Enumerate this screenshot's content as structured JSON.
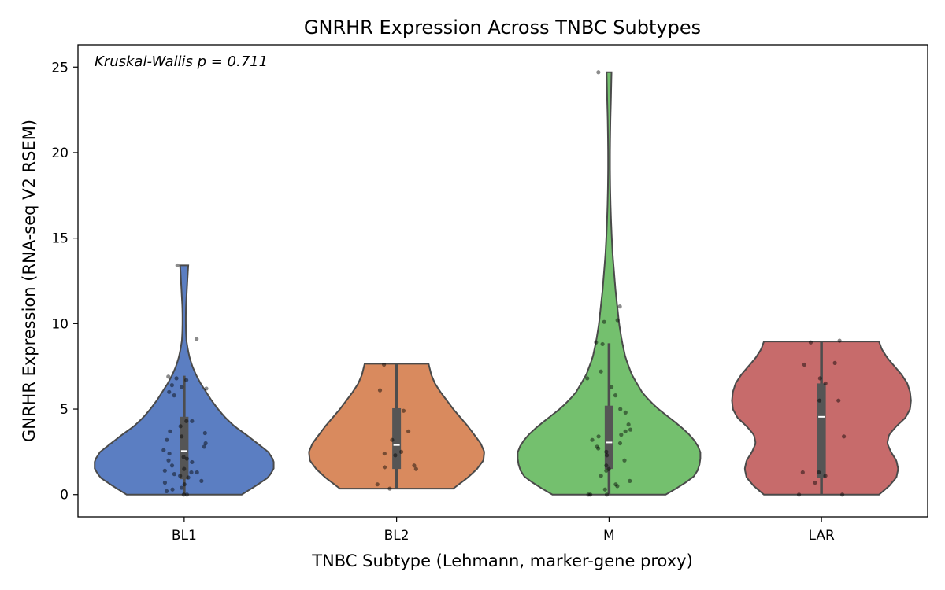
{
  "chart_data": {
    "type": "violin",
    "title": "GNRHR Expression Across TNBC Subtypes",
    "xlabel": "TNBC Subtype (Lehmann, marker-gene proxy)",
    "ylabel": "GNRHR Expression (RNA-seq V2 RSEM)",
    "annotation": "Kruskal-Wallis p = 0.711",
    "ylim": [
      -1.3,
      26.3
    ],
    "yticks": [
      "0",
      "5",
      "10",
      "15",
      "20",
      "25"
    ],
    "categories": [
      "BL1",
      "BL2",
      "M",
      "LAR"
    ],
    "grid": false,
    "legend": "none",
    "series": [
      {
        "category": "BL1",
        "color": "#5b7ec2",
        "violin_min": 0,
        "violin_max": 13.4,
        "density": [
          [
            0,
            0.63
          ],
          [
            0.5,
            0.78
          ],
          [
            1.0,
            0.92
          ],
          [
            1.5,
            0.98
          ],
          [
            2.0,
            0.98
          ],
          [
            2.5,
            0.92
          ],
          [
            3.0,
            0.8
          ],
          [
            3.5,
            0.68
          ],
          [
            4.0,
            0.55
          ],
          [
            4.5,
            0.45
          ],
          [
            5.0,
            0.37
          ],
          [
            5.5,
            0.3
          ],
          [
            6.0,
            0.24
          ],
          [
            6.5,
            0.18
          ],
          [
            7.0,
            0.13
          ],
          [
            7.5,
            0.09
          ],
          [
            8.0,
            0.06
          ],
          [
            8.5,
            0.04
          ],
          [
            9.0,
            0.025
          ],
          [
            9.5,
            0.02
          ],
          [
            10.0,
            0.018
          ],
          [
            10.5,
            0.018
          ],
          [
            11.0,
            0.02
          ],
          [
            11.5,
            0.025
          ],
          [
            12.0,
            0.03
          ],
          [
            12.5,
            0.035
          ],
          [
            13.0,
            0.04
          ],
          [
            13.4,
            0.045
          ]
        ],
        "box": {
          "q1": 0.9,
          "median": 2.55,
          "q3": 4.55,
          "whisker_low": 0,
          "whisker_high": 6.95
        },
        "points": [
          0.0,
          0.0,
          0.2,
          0.3,
          0.4,
          0.6,
          0.7,
          0.8,
          1.0,
          1.1,
          1.2,
          1.3,
          1.3,
          1.4,
          1.5,
          1.7,
          1.9,
          2.0,
          2.1,
          2.2,
          2.4,
          2.6,
          2.8,
          3.0,
          3.2,
          3.4,
          3.6,
          3.7,
          4.0,
          4.3,
          4.3,
          5.8,
          6.0,
          6.2,
          6.3,
          6.4,
          6.7,
          6.8,
          6.9,
          9.1,
          13.4
        ]
      },
      {
        "category": "BL2",
        "color": "#d98a5e",
        "violin_min": 0.35,
        "violin_max": 7.65,
        "density": [
          [
            0.35,
            0.62
          ],
          [
            1.0,
            0.78
          ],
          [
            1.5,
            0.88
          ],
          [
            2.0,
            0.95
          ],
          [
            2.5,
            0.96
          ],
          [
            3.0,
            0.92
          ],
          [
            3.5,
            0.85
          ],
          [
            4.0,
            0.78
          ],
          [
            4.5,
            0.7
          ],
          [
            5.0,
            0.62
          ],
          [
            5.5,
            0.55
          ],
          [
            6.0,
            0.48
          ],
          [
            6.5,
            0.42
          ],
          [
            7.0,
            0.38
          ],
          [
            7.65,
            0.35
          ]
        ],
        "box": {
          "q1": 1.5,
          "median": 2.9,
          "q3": 5.05,
          "whisker_low": 0.35,
          "whisker_high": 7.65
        },
        "points": [
          0.35,
          0.6,
          1.5,
          1.6,
          1.7,
          2.3,
          2.4,
          2.5,
          3.2,
          3.7,
          4.9,
          6.1,
          7.6
        ]
      },
      {
        "category": "M",
        "color": "#74c06e",
        "violin_min": 0,
        "violin_max": 24.7,
        "density": [
          [
            0,
            0.62
          ],
          [
            0.5,
            0.78
          ],
          [
            1.0,
            0.92
          ],
          [
            1.5,
            0.98
          ],
          [
            2.0,
            1.0
          ],
          [
            2.5,
            1.0
          ],
          [
            3.0,
            0.96
          ],
          [
            3.5,
            0.88
          ],
          [
            4.0,
            0.78
          ],
          [
            4.5,
            0.66
          ],
          [
            5.0,
            0.54
          ],
          [
            5.5,
            0.44
          ],
          [
            6.0,
            0.36
          ],
          [
            7.0,
            0.25
          ],
          [
            8.0,
            0.18
          ],
          [
            9.0,
            0.14
          ],
          [
            10.0,
            0.11
          ],
          [
            11.0,
            0.09
          ],
          [
            12.0,
            0.07
          ],
          [
            13.0,
            0.055
          ],
          [
            14.0,
            0.04
          ],
          [
            15.0,
            0.03
          ],
          [
            16.0,
            0.022
          ],
          [
            17.0,
            0.016
          ],
          [
            18.0,
            0.012
          ],
          [
            19.0,
            0.01
          ],
          [
            20.0,
            0.01
          ],
          [
            21.0,
            0.012
          ],
          [
            22.0,
            0.015
          ],
          [
            23.0,
            0.02
          ],
          [
            24.0,
            0.024
          ],
          [
            24.7,
            0.027
          ]
        ],
        "box": {
          "q1": 1.5,
          "median": 3.05,
          "q3": 5.2,
          "whisker_low": 0,
          "whisker_high": 8.85
        },
        "points": [
          0.0,
          0.0,
          0.0,
          0.3,
          0.5,
          0.6,
          0.8,
          1.1,
          1.4,
          1.5,
          1.7,
          2.0,
          2.3,
          2.5,
          2.7,
          2.8,
          3.0,
          3.2,
          3.4,
          3.5,
          3.7,
          3.8,
          4.1,
          4.8,
          5.0,
          5.8,
          6.3,
          6.8,
          7.2,
          8.8,
          8.9,
          10.1,
          10.2,
          11.0,
          24.7
        ]
      },
      {
        "category": "LAR",
        "color": "#c76b6b",
        "violin_min": 0,
        "violin_max": 8.95,
        "density": [
          [
            0,
            0.63
          ],
          [
            0.5,
            0.74
          ],
          [
            1.0,
            0.82
          ],
          [
            1.5,
            0.84
          ],
          [
            2.0,
            0.82
          ],
          [
            2.5,
            0.76
          ],
          [
            3.0,
            0.72
          ],
          [
            3.5,
            0.74
          ],
          [
            4.0,
            0.82
          ],
          [
            4.5,
            0.92
          ],
          [
            5.0,
            0.97
          ],
          [
            5.5,
            0.98
          ],
          [
            6.0,
            0.97
          ],
          [
            6.5,
            0.94
          ],
          [
            7.0,
            0.88
          ],
          [
            7.5,
            0.8
          ],
          [
            8.0,
            0.72
          ],
          [
            8.5,
            0.66
          ],
          [
            8.95,
            0.63
          ]
        ],
        "box": {
          "q1": 1.0,
          "median": 4.55,
          "q3": 6.5,
          "whisker_low": 0,
          "whisker_high": 8.95
        },
        "points": [
          0.0,
          0.0,
          0.7,
          1.1,
          1.3,
          1.3,
          3.4,
          5.5,
          5.5,
          6.5,
          6.8,
          7.6,
          7.7,
          9.0,
          8.9
        ]
      }
    ]
  }
}
